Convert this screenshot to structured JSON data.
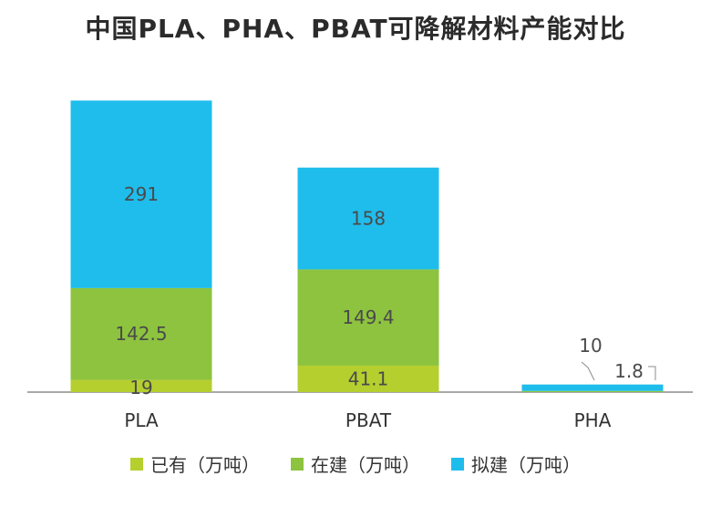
{
  "chart_data": {
    "type": "bar",
    "stacked": true,
    "title": "中国PLA、PHA、PBAT可降解材料产能对比",
    "categories": [
      "PLA",
      "PBAT",
      "PHA"
    ],
    "series": [
      {
        "name": "已有（万吨）",
        "color": "#b5cf2f",
        "values": [
          19,
          41.1,
          0
        ]
      },
      {
        "name": "在建（万吨）",
        "color": "#8dc33f",
        "values": [
          142.5,
          149.4,
          1.8
        ]
      },
      {
        "name": "拟建（万吨）",
        "color": "#1fbdec",
        "values": [
          291,
          158,
          10
        ]
      }
    ],
    "data_labels": [
      [
        "19",
        "41.1",
        ""
      ],
      [
        "142.5",
        "149.4",
        "1.8"
      ],
      [
        "291",
        "158",
        "10"
      ]
    ],
    "ylim": [
      0,
      460
    ],
    "grid": false,
    "legend": "bottom"
  }
}
